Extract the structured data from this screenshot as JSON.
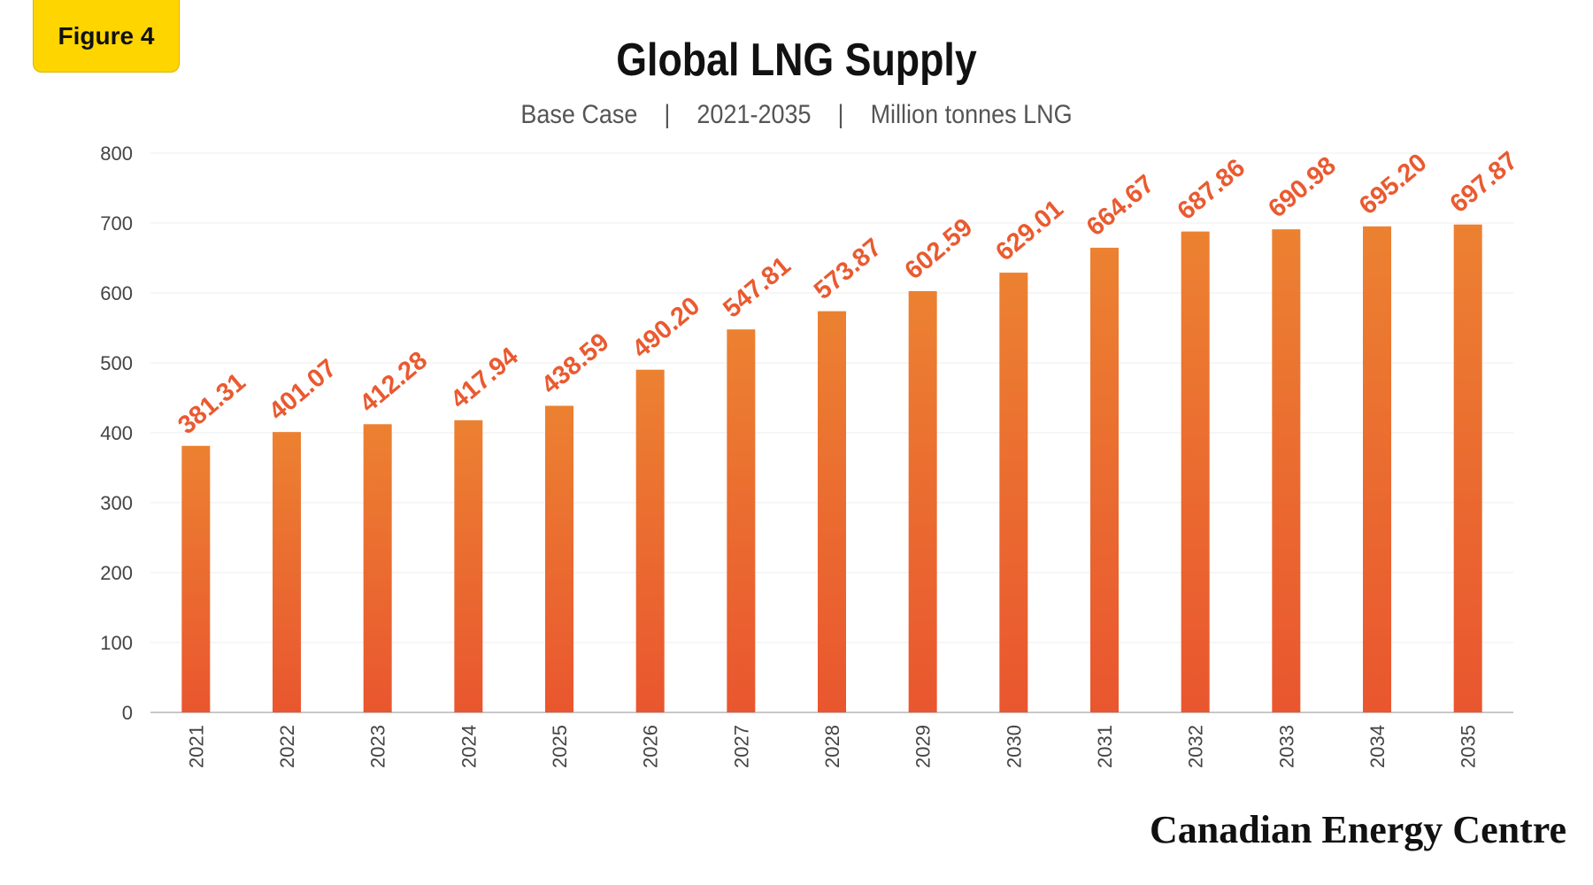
{
  "figure_badge": "Figure 4",
  "footer_brand": "Canadian Energy Centre",
  "colors": {
    "bar_top": "#ec8131",
    "bar_bottom": "#e9562f",
    "label": "#ea5a30",
    "badge": "#ffd500"
  },
  "chart_data": {
    "type": "bar",
    "title": "Global LNG Supply",
    "subtitle": "Base Case    |    2021-2035    |    Million tonnes LNG",
    "categories": [
      "2021",
      "2022",
      "2023",
      "2024",
      "2025",
      "2026",
      "2027",
      "2028",
      "2029",
      "2030",
      "2031",
      "2032",
      "2033",
      "2034",
      "2035"
    ],
    "values": [
      381.31,
      401.07,
      412.28,
      417.94,
      438.59,
      490.2,
      547.81,
      573.87,
      602.59,
      629.01,
      664.67,
      687.86,
      690.98,
      695.2,
      697.87
    ],
    "value_labels": [
      "381.31",
      "401.07",
      "412.28",
      "417.94",
      "438.59",
      "490.20",
      "547.81",
      "573.87",
      "602.59",
      "629.01",
      "664.67",
      "687.86",
      "690.98",
      "695.20",
      "697.87"
    ],
    "yticks": [
      "0",
      "100",
      "200",
      "300",
      "400",
      "500",
      "600",
      "700",
      "800"
    ],
    "ylim": [
      0,
      800
    ],
    "grid": true,
    "legend": "none"
  }
}
